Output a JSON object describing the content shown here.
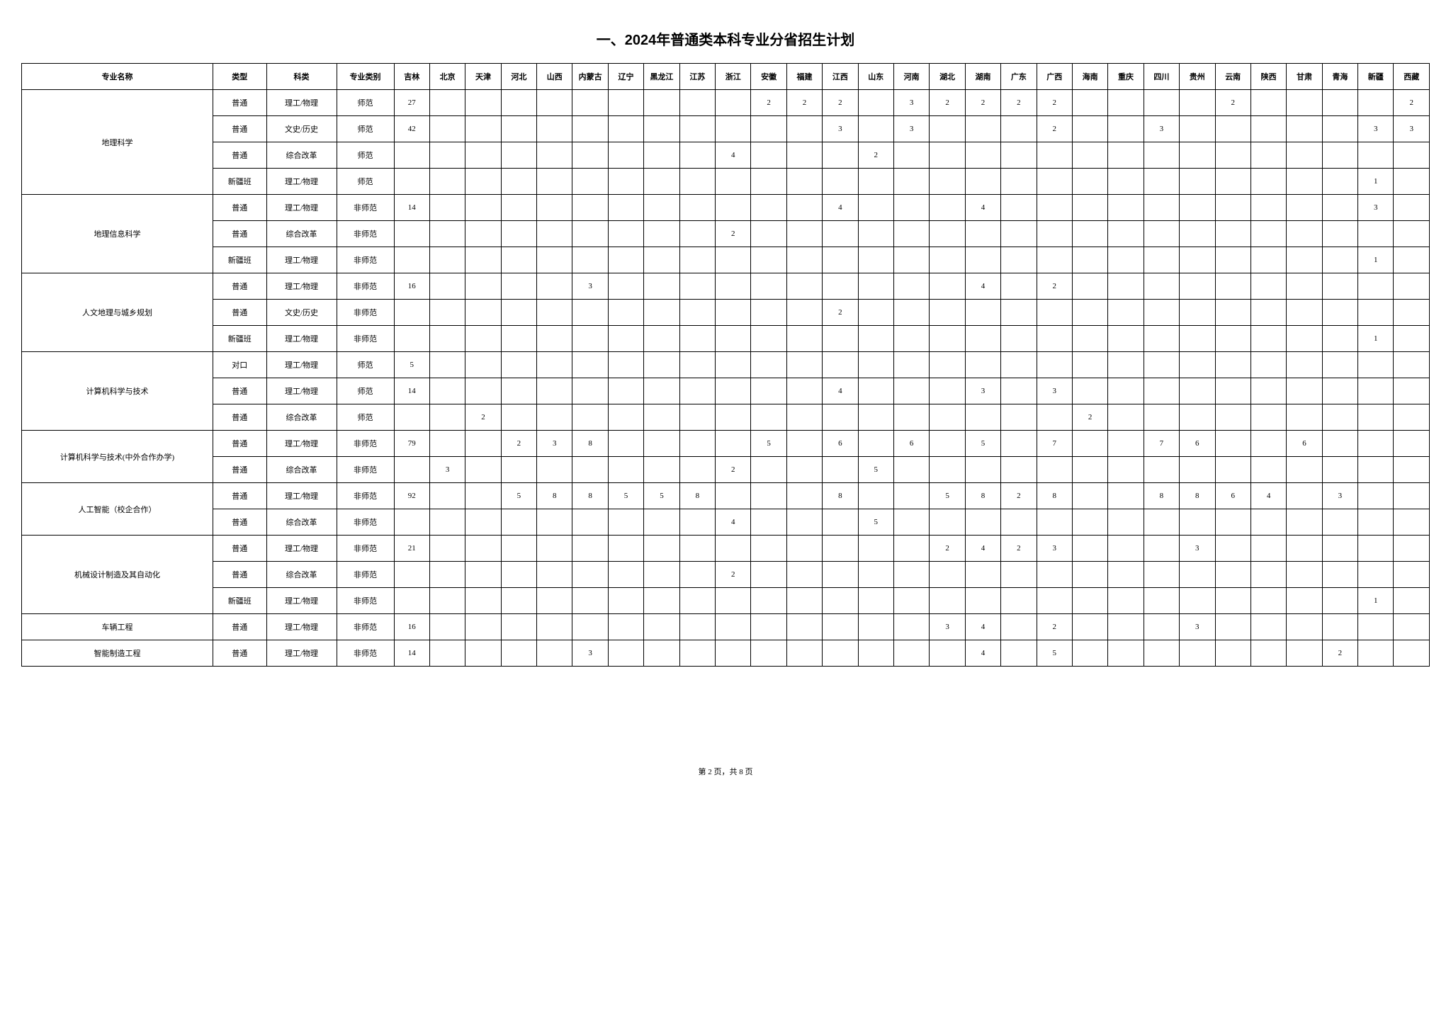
{
  "title": "一、2024年普通类本科专业分省招生计划",
  "footer": "第 2 页，共 8 页",
  "headers": [
    "专业名称",
    "类型",
    "科类",
    "专业类别",
    "吉林",
    "北京",
    "天津",
    "河北",
    "山西",
    "内蒙古",
    "辽宁",
    "黑龙江",
    "江苏",
    "浙江",
    "安徽",
    "福建",
    "江西",
    "山东",
    "河南",
    "湖北",
    "湖南",
    "广东",
    "广西",
    "海南",
    "重庆",
    "四川",
    "贵州",
    "云南",
    "陕西",
    "甘肃",
    "青海",
    "新疆",
    "西藏"
  ],
  "majors": [
    {
      "name": "地理科学",
      "rows": [
        {
          "type": "普通",
          "subject": "理工/物理",
          "category": "师范",
          "v": [
            "27",
            "",
            "",
            "",
            "",
            "",
            "",
            "",
            "",
            "",
            "2",
            "2",
            "2",
            "",
            "3",
            "2",
            "2",
            "2",
            "2",
            "",
            "",
            "",
            "",
            "2",
            "",
            "",
            "",
            "",
            "2"
          ]
        },
        {
          "type": "普通",
          "subject": "文史/历史",
          "category": "师范",
          "v": [
            "42",
            "",
            "",
            "",
            "",
            "",
            "",
            "",
            "",
            "",
            "",
            "",
            "3",
            "",
            "3",
            "",
            "",
            "",
            "2",
            "",
            "",
            "3",
            "",
            "",
            "",
            "",
            "",
            "3",
            "3"
          ]
        },
        {
          "type": "普通",
          "subject": "综合改革",
          "category": "师范",
          "v": [
            "",
            "",
            "",
            "",
            "",
            "",
            "",
            "",
            "",
            "4",
            "",
            "",
            "",
            "2",
            "",
            "",
            "",
            "",
            "",
            "",
            "",
            "",
            "",
            "",
            "",
            "",
            "",
            "",
            ""
          ]
        },
        {
          "type": "新疆班",
          "subject": "理工/物理",
          "category": "师范",
          "v": [
            "",
            "",
            "",
            "",
            "",
            "",
            "",
            "",
            "",
            "",
            "",
            "",
            "",
            "",
            "",
            "",
            "",
            "",
            "",
            "",
            "",
            "",
            "",
            "",
            "",
            "",
            "",
            "1",
            ""
          ]
        }
      ]
    },
    {
      "name": "地理信息科学",
      "rows": [
        {
          "type": "普通",
          "subject": "理工/物理",
          "category": "非师范",
          "v": [
            "14",
            "",
            "",
            "",
            "",
            "",
            "",
            "",
            "",
            "",
            "",
            "",
            "4",
            "",
            "",
            "",
            "4",
            "",
            "",
            "",
            "",
            "",
            "",
            "",
            "",
            "",
            "",
            "3",
            ""
          ]
        },
        {
          "type": "普通",
          "subject": "综合改革",
          "category": "非师范",
          "v": [
            "",
            "",
            "",
            "",
            "",
            "",
            "",
            "",
            "",
            "2",
            "",
            "",
            "",
            "",
            "",
            "",
            "",
            "",
            "",
            "",
            "",
            "",
            "",
            "",
            "",
            "",
            "",
            "",
            ""
          ]
        },
        {
          "type": "新疆班",
          "subject": "理工/物理",
          "category": "非师范",
          "v": [
            "",
            "",
            "",
            "",
            "",
            "",
            "",
            "",
            "",
            "",
            "",
            "",
            "",
            "",
            "",
            "",
            "",
            "",
            "",
            "",
            "",
            "",
            "",
            "",
            "",
            "",
            "",
            "1",
            ""
          ]
        }
      ]
    },
    {
      "name": "人文地理与城乡规划",
      "rows": [
        {
          "type": "普通",
          "subject": "理工/物理",
          "category": "非师范",
          "v": [
            "16",
            "",
            "",
            "",
            "",
            "3",
            "",
            "",
            "",
            "",
            "",
            "",
            "",
            "",
            "",
            "",
            "4",
            "",
            "2",
            "",
            "",
            "",
            "",
            "",
            "",
            "",
            "",
            "",
            ""
          ]
        },
        {
          "type": "普通",
          "subject": "文史/历史",
          "category": "非师范",
          "v": [
            "",
            "",
            "",
            "",
            "",
            "",
            "",
            "",
            "",
            "",
            "",
            "",
            "2",
            "",
            "",
            "",
            "",
            "",
            "",
            "",
            "",
            "",
            "",
            "",
            "",
            "",
            "",
            "",
            ""
          ]
        },
        {
          "type": "新疆班",
          "subject": "理工/物理",
          "category": "非师范",
          "v": [
            "",
            "",
            "",
            "",
            "",
            "",
            "",
            "",
            "",
            "",
            "",
            "",
            "",
            "",
            "",
            "",
            "",
            "",
            "",
            "",
            "",
            "",
            "",
            "",
            "",
            "",
            "",
            "1",
            ""
          ]
        }
      ]
    },
    {
      "name": "计算机科学与技术",
      "rows": [
        {
          "type": "对口",
          "subject": "理工/物理",
          "category": "师范",
          "v": [
            "5",
            "",
            "",
            "",
            "",
            "",
            "",
            "",
            "",
            "",
            "",
            "",
            "",
            "",
            "",
            "",
            "",
            "",
            "",
            "",
            "",
            "",
            "",
            "",
            "",
            "",
            "",
            "",
            ""
          ]
        },
        {
          "type": "普通",
          "subject": "理工/物理",
          "category": "师范",
          "v": [
            "14",
            "",
            "",
            "",
            "",
            "",
            "",
            "",
            "",
            "",
            "",
            "",
            "4",
            "",
            "",
            "",
            "3",
            "",
            "3",
            "",
            "",
            "",
            "",
            "",
            "",
            "",
            "",
            "",
            ""
          ]
        },
        {
          "type": "普通",
          "subject": "综合改革",
          "category": "师范",
          "v": [
            "",
            "",
            "2",
            "",
            "",
            "",
            "",
            "",
            "",
            "",
            "",
            "",
            "",
            "",
            "",
            "",
            "",
            "",
            "",
            "2",
            "",
            "",
            "",
            "",
            "",
            "",
            "",
            "",
            ""
          ]
        }
      ]
    },
    {
      "name": "计算机科学与技术(中外合作办学)",
      "rows": [
        {
          "type": "普通",
          "subject": "理工/物理",
          "category": "非师范",
          "v": [
            "79",
            "",
            "",
            "2",
            "3",
            "8",
            "",
            "",
            "",
            "",
            "5",
            "",
            "6",
            "",
            "6",
            "",
            "5",
            "",
            "7",
            "",
            "",
            "7",
            "6",
            "",
            "",
            "6",
            "",
            "",
            ""
          ]
        },
        {
          "type": "普通",
          "subject": "综合改革",
          "category": "非师范",
          "v": [
            "",
            "3",
            "",
            "",
            "",
            "",
            "",
            "",
            "",
            "2",
            "",
            "",
            "",
            "5",
            "",
            "",
            "",
            "",
            "",
            "",
            "",
            "",
            "",
            "",
            "",
            "",
            "",
            "",
            ""
          ]
        }
      ]
    },
    {
      "name": "人工智能（校企合作）",
      "rows": [
        {
          "type": "普通",
          "subject": "理工/物理",
          "category": "非师范",
          "v": [
            "92",
            "",
            "",
            "5",
            "8",
            "8",
            "5",
            "5",
            "8",
            "",
            "",
            "",
            "8",
            "",
            "",
            "5",
            "8",
            "2",
            "8",
            "",
            "",
            "8",
            "8",
            "6",
            "4",
            "",
            "3",
            "",
            ""
          ]
        },
        {
          "type": "普通",
          "subject": "综合改革",
          "category": "非师范",
          "v": [
            "",
            "",
            "",
            "",
            "",
            "",
            "",
            "",
            "",
            "4",
            "",
            "",
            "",
            "5",
            "",
            "",
            "",
            "",
            "",
            "",
            "",
            "",
            "",
            "",
            "",
            "",
            "",
            "",
            ""
          ]
        }
      ]
    },
    {
      "name": "机械设计制造及其自动化",
      "rows": [
        {
          "type": "普通",
          "subject": "理工/物理",
          "category": "非师范",
          "v": [
            "21",
            "",
            "",
            "",
            "",
            "",
            "",
            "",
            "",
            "",
            "",
            "",
            "",
            "",
            "",
            "2",
            "4",
            "2",
            "3",
            "",
            "",
            "",
            "3",
            "",
            "",
            "",
            "",
            "",
            ""
          ]
        },
        {
          "type": "普通",
          "subject": "综合改革",
          "category": "非师范",
          "v": [
            "",
            "",
            "",
            "",
            "",
            "",
            "",
            "",
            "",
            "2",
            "",
            "",
            "",
            "",
            "",
            "",
            "",
            "",
            "",
            "",
            "",
            "",
            "",
            "",
            "",
            "",
            "",
            "",
            ""
          ]
        },
        {
          "type": "新疆班",
          "subject": "理工/物理",
          "category": "非师范",
          "v": [
            "",
            "",
            "",
            "",
            "",
            "",
            "",
            "",
            "",
            "",
            "",
            "",
            "",
            "",
            "",
            "",
            "",
            "",
            "",
            "",
            "",
            "",
            "",
            "",
            "",
            "",
            "",
            "1",
            ""
          ]
        }
      ]
    },
    {
      "name": "车辆工程",
      "rows": [
        {
          "type": "普通",
          "subject": "理工/物理",
          "category": "非师范",
          "v": [
            "16",
            "",
            "",
            "",
            "",
            "",
            "",
            "",
            "",
            "",
            "",
            "",
            "",
            "",
            "",
            "3",
            "4",
            "",
            "2",
            "",
            "",
            "",
            "3",
            "",
            "",
            "",
            "",
            "",
            ""
          ]
        }
      ]
    },
    {
      "name": "智能制造工程",
      "rows": [
        {
          "type": "普通",
          "subject": "理工/物理",
          "category": "非师范",
          "v": [
            "14",
            "",
            "",
            "",
            "",
            "3",
            "",
            "",
            "",
            "",
            "",
            "",
            "",
            "",
            "",
            "",
            "4",
            "",
            "5",
            "",
            "",
            "",
            "",
            "",
            "",
            "",
            "2",
            "",
            ""
          ]
        }
      ]
    }
  ]
}
